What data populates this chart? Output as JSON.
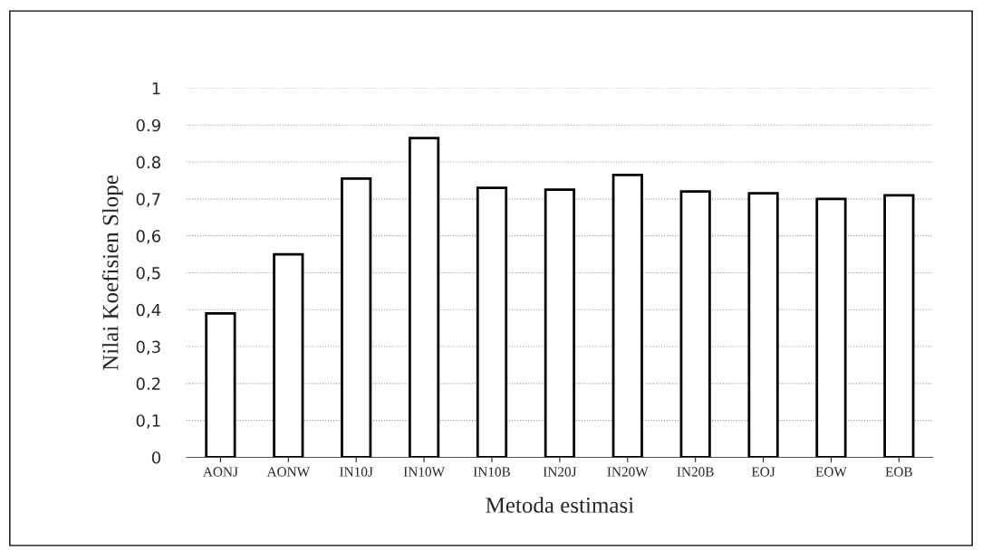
{
  "chart_data": {
    "type": "bar",
    "xlabel": "Metoda estimasi",
    "ylabel": "Nilai Koefisien Slope",
    "categories": [
      "AONJ",
      "AONW",
      "IN10J",
      "IN10W",
      "IN10B",
      "IN20J",
      "IN20W",
      "IN20B",
      "EOJ",
      "EOW",
      "EOB"
    ],
    "values": [
      0.39,
      0.55,
      0.755,
      0.865,
      0.73,
      0.725,
      0.765,
      0.72,
      0.715,
      0.7,
      0.71
    ],
    "color": "#ffffff",
    "ylim": [
      0,
      1
    ],
    "yticks": [
      0,
      {
        "value": 0.1,
        "label": "0,1"
      },
      0.2,
      {
        "value": 0.3,
        "label": "0,3"
      },
      {
        "value": 0.4,
        "label": "0,4"
      },
      {
        "value": 0.5,
        "label": "0,5"
      },
      {
        "value": 0.6,
        "label": "0,6"
      },
      {
        "value": 0.7,
        "label": "0,7"
      },
      0.8,
      0.9,
      1
    ],
    "grid": "y"
  }
}
